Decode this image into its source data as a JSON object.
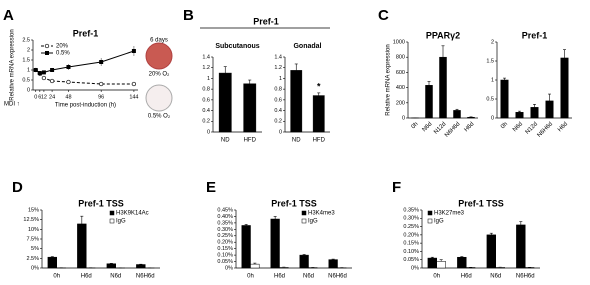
{
  "chart_data": [
    {
      "label": "A",
      "type": "line",
      "title": "Pref-1",
      "ylabel": "Relative mRNA expression",
      "xlabel": "Time post-induction (h)",
      "annotation": "MDI ↑",
      "x": [
        0,
        6,
        12,
        24,
        48,
        96,
        144
      ],
      "xticks": [
        0,
        6,
        12,
        24,
        48,
        96,
        144
      ],
      "xlim": [
        -4,
        150
      ],
      "ylim": [
        0,
        2.5
      ],
      "yticks": [
        0,
        0.5,
        1,
        1.5,
        2,
        2.5
      ],
      "legend": "upper left",
      "series": [
        {
          "name": "20%",
          "color": "#000000",
          "dash": true,
          "marker": "circle-open",
          "values": [
            1,
            0.82,
            0.6,
            0.45,
            0.4,
            0.3,
            0.3
          ],
          "errors": [
            0.05,
            0.05,
            0.05,
            0.04,
            0.03,
            0.03,
            0.03
          ]
        },
        {
          "name": "0.5%",
          "color": "#000000",
          "marker": "square",
          "values": [
            1,
            0.85,
            0.88,
            1.0,
            1.15,
            1.4,
            1.95
          ],
          "errors": [
            0.05,
            0.1,
            0.08,
            0.1,
            0.15,
            0.2,
            0.25
          ]
        }
      ],
      "photos": {
        "title": "6 days",
        "labels": [
          "20% O₂",
          "0.5% O₂"
        ]
      }
    },
    {
      "label": "B",
      "group_title": "Pref-1",
      "type": "bar",
      "title": "Subcutanous",
      "categories": [
        "ND",
        "HFD"
      ],
      "series": [
        {
          "color": "#000000",
          "values": [
            1.1,
            0.9
          ],
          "errors": [
            0.12,
            0.07
          ]
        }
      ],
      "ylim": [
        0,
        1.4
      ],
      "yticks": [
        0,
        0.2,
        0.4,
        0.6,
        0.8,
        1,
        1.2,
        1.4
      ]
    },
    {
      "type": "bar",
      "title": "Gonadal",
      "categories": [
        "ND",
        "HFD"
      ],
      "series": [
        {
          "color": "#000000",
          "values": [
            1.15,
            0.68
          ],
          "errors": [
            0.12,
            0.05
          ],
          "significance": [
            null,
            "*"
          ]
        }
      ],
      "ylim": [
        0,
        1.4
      ],
      "yticks": [
        0,
        0.2,
        0.4,
        0.6,
        0.8,
        1,
        1.2,
        1.4
      ]
    },
    {
      "label": "C",
      "type": "bar",
      "title": "PPARγ2",
      "ylabel": "Relative mRNA expression",
      "categories": [
        "0h",
        "N6d",
        "N12d",
        "N6H6d",
        "H6d"
      ],
      "rotate_labels": true,
      "series": [
        {
          "color": "#000000",
          "values": [
            1,
            430,
            800,
            100,
            10
          ],
          "errors": [
            1,
            50,
            150,
            15,
            5
          ]
        }
      ],
      "ylim": [
        0,
        1000
      ],
      "yticks": [
        0,
        200,
        400,
        600,
        800,
        1000
      ]
    },
    {
      "type": "bar",
      "title": "Pref-1",
      "categories": [
        "0h",
        "N6d",
        "N12d",
        "N6H6d",
        "H6d"
      ],
      "rotate_labels": true,
      "series": [
        {
          "color": "#000000",
          "values": [
            1,
            0.15,
            0.28,
            0.45,
            1.58
          ],
          "errors": [
            0.05,
            0.03,
            0.08,
            0.18,
            0.22
          ]
        }
      ],
      "ylim": [
        0,
        2
      ],
      "yticks": [
        0,
        0.5,
        1,
        1.5,
        2
      ]
    },
    {
      "label": "D",
      "type": "bar",
      "title": "Pref-1 TSS",
      "categories": [
        "0h",
        "H6d",
        "N6d",
        "N6H6d"
      ],
      "legend": "upper right",
      "series": [
        {
          "name": "H3K9K14Ac",
          "color": "#000000",
          "values": [
            2.8,
            11.4,
            1.1,
            0.9
          ],
          "errors": [
            0.15,
            2,
            0.1,
            0.08
          ]
        },
        {
          "name": "IgG",
          "color": "#ffffff",
          "values": [
            0.05,
            0.05,
            0.03,
            0.03
          ],
          "errors": [
            0.02,
            0.02,
            0.01,
            0.01
          ]
        }
      ],
      "ylim": [
        0,
        15
      ],
      "yticks": [
        {
          "value": 0,
          "label": "0%"
        },
        {
          "value": 2.5,
          "label": "2.5%"
        },
        {
          "value": 5,
          "label": "5%"
        },
        {
          "value": 7.5,
          "label": "7.5%"
        },
        {
          "value": 10,
          "label": "10%"
        },
        {
          "value": 12.5,
          "label": "12.5%"
        },
        {
          "value": 15,
          "label": "15%"
        }
      ]
    },
    {
      "label": "E",
      "type": "bar",
      "title": "Pref-1 TSS",
      "categories": [
        "0h",
        "H6d",
        "N6d",
        "N6H6d"
      ],
      "legend": "upper right",
      "series": [
        {
          "name": "H3K4me3",
          "color": "#000000",
          "values": [
            0.33,
            0.38,
            0.1,
            0.065
          ],
          "errors": [
            0.008,
            0.02,
            0.005,
            0.004
          ]
        },
        {
          "name": "IgG",
          "color": "#ffffff",
          "values": [
            0.03,
            0.005,
            0.003,
            0.002
          ],
          "errors": [
            0.008,
            0.002,
            0.001,
            0.001
          ]
        }
      ],
      "ylim": [
        0,
        0.45
      ],
      "yticks": [
        {
          "value": 0,
          "label": "0%"
        },
        {
          "value": 0.05,
          "label": "0.05%"
        },
        {
          "value": 0.1,
          "label": "0.10%"
        },
        {
          "value": 0.15,
          "label": "0.15%"
        },
        {
          "value": 0.2,
          "label": "0.20%"
        },
        {
          "value": 0.25,
          "label": "0.25%"
        },
        {
          "value": 0.3,
          "label": "0.30%"
        },
        {
          "value": 0.35,
          "label": "0.35%"
        },
        {
          "value": 0.4,
          "label": "0.40%"
        },
        {
          "value": 0.45,
          "label": "0.45%"
        }
      ]
    },
    {
      "label": "F",
      "type": "bar",
      "title": "Pref-1 TSS",
      "categories": [
        "0h",
        "H6d",
        "N6d",
        "N6H6d"
      ],
      "legend": "upper left",
      "series": [
        {
          "name": "H3K27me3",
          "color": "#000000",
          "values": [
            0.06,
            0.065,
            0.2,
            0.26
          ],
          "errors": [
            0.005,
            0.004,
            0.01,
            0.02
          ]
        },
        {
          "name": "IgG",
          "color": "#ffffff",
          "values": [
            0.04,
            0.003,
            0.004,
            0.003
          ],
          "errors": [
            0.01,
            0.001,
            0.001,
            0.001
          ]
        }
      ],
      "ylim": [
        0,
        0.35
      ],
      "yticks": [
        {
          "value": 0,
          "label": "0%"
        },
        {
          "value": 0.05,
          "label": "0.05%"
        },
        {
          "value": 0.1,
          "label": "0.10%"
        },
        {
          "value": 0.15,
          "label": "0.15%"
        },
        {
          "value": 0.2,
          "label": "0.20%"
        },
        {
          "value": 0.25,
          "label": "0.25%"
        },
        {
          "value": 0.3,
          "label": "0.30%"
        },
        {
          "value": 0.35,
          "label": "0.35%"
        }
      ]
    }
  ]
}
